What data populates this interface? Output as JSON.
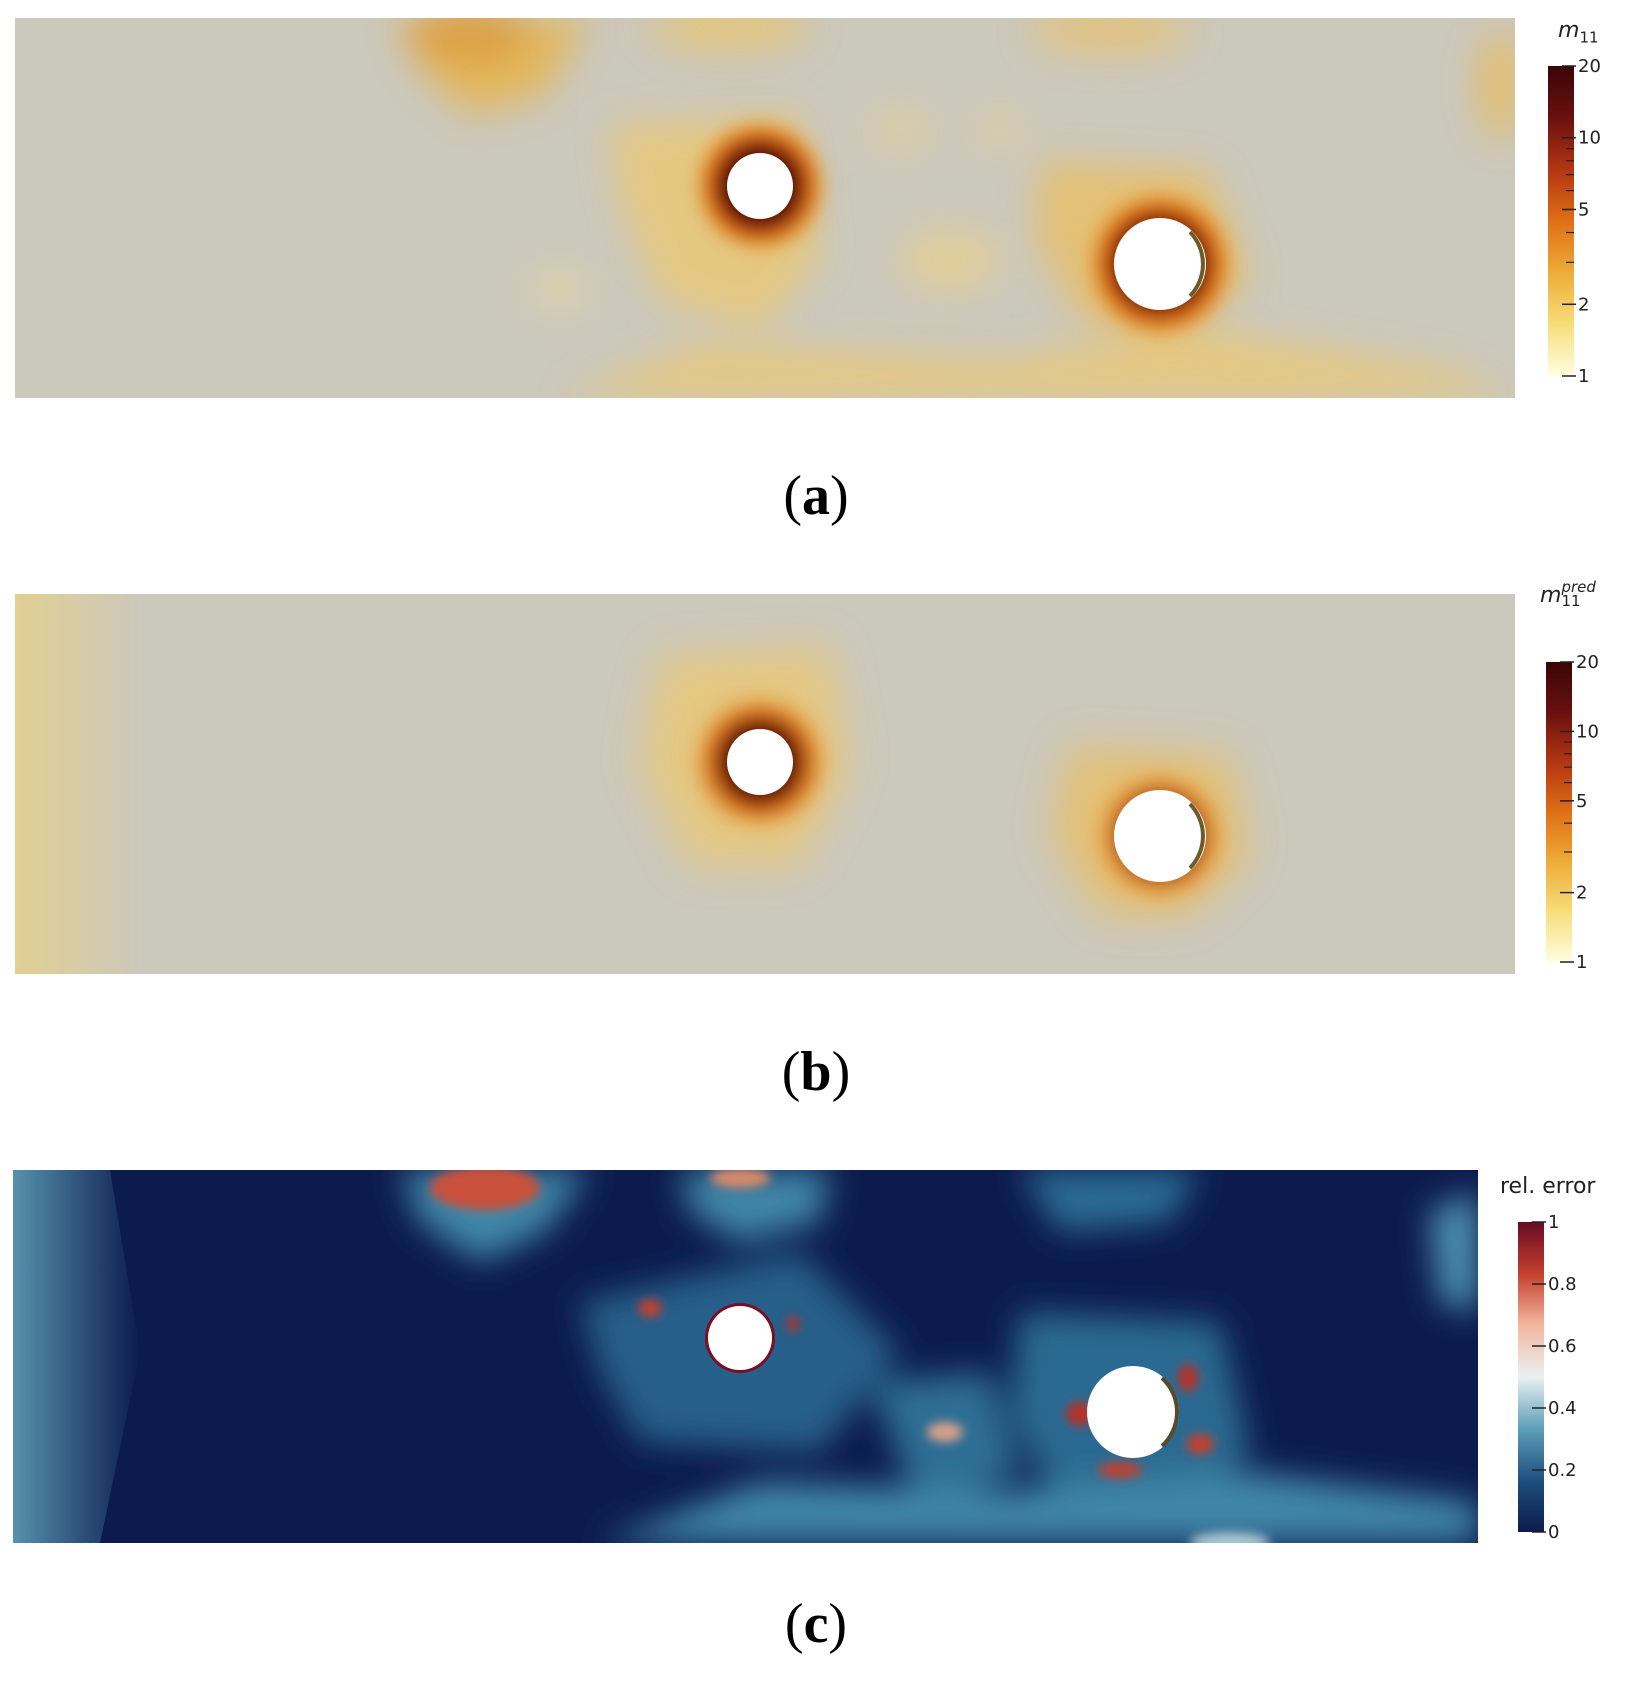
{
  "panels": [
    {
      "caption_label": "a",
      "colorbar": {
        "symbol": "m",
        "subscript": "11",
        "superscript": "",
        "scale": "log",
        "range": [
          1,
          20
        ],
        "tick_labels": [
          "20",
          "10",
          "5",
          "2",
          "1"
        ],
        "colormap": [
          "#ffffe0",
          "#f7dd7a",
          "#eeac38",
          "#df6f16",
          "#b23512",
          "#6a1010",
          "#3a0505"
        ]
      }
    },
    {
      "caption_label": "b",
      "colorbar": {
        "symbol": "m",
        "subscript": "11",
        "superscript": "pred",
        "scale": "log",
        "range": [
          1,
          20
        ],
        "tick_labels": [
          "20",
          "10",
          "5",
          "2",
          "1"
        ],
        "colormap": [
          "#ffffe0",
          "#f7dd7a",
          "#eeac38",
          "#df6f16",
          "#b23512",
          "#6a1010",
          "#3a0505"
        ]
      }
    },
    {
      "caption_label": "c",
      "colorbar": {
        "title": "rel. error",
        "scale": "linear",
        "range": [
          0,
          1
        ],
        "tick_labels": [
          "1",
          "0.8",
          "0.6",
          "0.4",
          "0.2",
          "0"
        ],
        "colormap": [
          "#0c1b4d",
          "#1f4f7e",
          "#5d9fb8",
          "#e9f1f2",
          "#f3b7a0",
          "#c4402e",
          "#660a24"
        ]
      }
    }
  ]
}
